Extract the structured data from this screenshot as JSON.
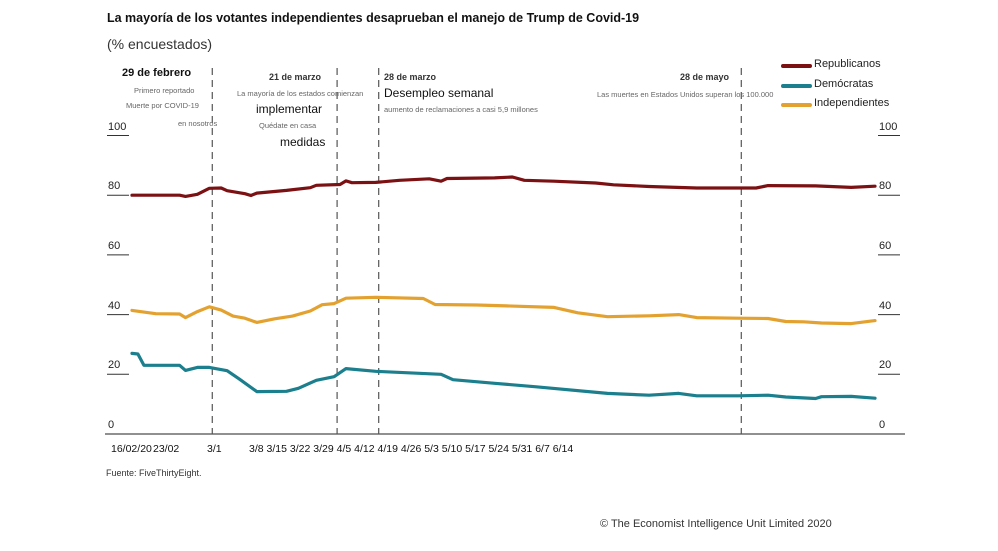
{
  "title": "La mayoría de los votantes independientes desaprueban el manejo de Trump de Covid-19",
  "subtitle": "(% encuestados)",
  "source": "Fuente: FiveThirtyEight.",
  "copyright": "© The Economist Intelligence Unit Limited 2020",
  "annotations": [
    {
      "date": "2020-02-29",
      "label": "29 de febrero",
      "lines": [
        "Primero reportado",
        "Muerte por COVID-19",
        "en nosotros"
      ]
    },
    {
      "date": "2020-03-21",
      "label": "21 de marzo",
      "lines": [
        "La mayoría de los estados comienzan",
        "implementar",
        "Quédate en casa",
        "medidas"
      ]
    },
    {
      "date": "2020-03-28",
      "label": "28 de marzo",
      "lines": [
        "Desempleo semanal",
        "aumento de reclamaciones a casi 5,9 millones"
      ]
    },
    {
      "date": "2020-05-28",
      "label": "28 de mayo",
      "lines": [
        "Las muertes en Estados Unidos superan los 100.000"
      ]
    }
  ],
  "chart_data": {
    "type": "line",
    "title": "La mayoría de los votantes independientes desaprueban el manejo de Trump de Covid-19",
    "subtitle": "(% encuestados)",
    "xlim": [
      "2020-02-16",
      "2020-06-20"
    ],
    "ylim": [
      0,
      100
    ],
    "yticks": [
      "100",
      "80",
      "60",
      "40",
      "20",
      "0"
    ],
    "xtick_labels": [
      "16/02/20",
      "23/02",
      "3/1",
      "3/8",
      "3/15",
      "3/22",
      "3/29",
      "4/5",
      "4/12",
      "4/19",
      "4/26",
      "5/3",
      "5/10",
      "5/17",
      "5/24",
      "5/31",
      "6/7",
      "6/14"
    ],
    "grid": false,
    "legend_position": "top-right",
    "series": [
      {
        "name": "Republicanos",
        "color": "#7b1113",
        "points": [
          [
            "2020-02-16",
            80
          ],
          [
            "2020-02-24",
            80
          ],
          [
            "2020-02-25",
            79.6
          ],
          [
            "2020-02-27",
            80.3
          ],
          [
            "2020-02-29",
            82.3
          ],
          [
            "2020-03-02",
            82.4
          ],
          [
            "2020-03-03",
            81.5
          ],
          [
            "2020-03-06",
            80.5
          ],
          [
            "2020-03-07",
            79.9
          ],
          [
            "2020-03-08",
            80.7
          ],
          [
            "2020-03-13",
            81.6
          ],
          [
            "2020-03-17",
            82.5
          ],
          [
            "2020-03-18",
            83.3
          ],
          [
            "2020-03-22",
            83.6
          ],
          [
            "2020-03-23",
            84.8
          ],
          [
            "2020-03-24",
            84.2
          ],
          [
            "2020-03-28",
            84.3
          ],
          [
            "2020-04-01",
            85
          ],
          [
            "2020-04-06",
            85.5
          ],
          [
            "2020-04-08",
            84.7
          ],
          [
            "2020-04-09",
            85.6
          ],
          [
            "2020-04-17",
            85.8
          ],
          [
            "2020-04-20",
            86.1
          ],
          [
            "2020-04-22",
            85
          ],
          [
            "2020-04-27",
            84.7
          ],
          [
            "2020-05-04",
            84.1
          ],
          [
            "2020-05-07",
            83.5
          ],
          [
            "2020-05-13",
            82.9
          ],
          [
            "2020-05-21",
            82.4
          ],
          [
            "2020-05-31",
            82.4
          ],
          [
            "2020-06-02",
            83.2
          ],
          [
            "2020-06-10",
            83.1
          ],
          [
            "2020-06-16",
            82.6
          ],
          [
            "2020-06-20",
            83
          ]
        ]
      },
      {
        "name": "Demócratas",
        "color": "#1b7f8d",
        "points": [
          [
            "2020-02-16",
            27
          ],
          [
            "2020-02-17",
            26.8
          ],
          [
            "2020-02-18",
            23
          ],
          [
            "2020-02-24",
            23
          ],
          [
            "2020-02-25",
            21.3
          ],
          [
            "2020-02-27",
            22.3
          ],
          [
            "2020-02-29",
            22.3
          ],
          [
            "2020-03-03",
            21.2
          ],
          [
            "2020-03-05",
            18.5
          ],
          [
            "2020-03-08",
            14.2
          ],
          [
            "2020-03-13",
            14.3
          ],
          [
            "2020-03-15",
            15.3
          ],
          [
            "2020-03-18",
            18
          ],
          [
            "2020-03-21",
            19.2
          ],
          [
            "2020-03-23",
            21.9
          ],
          [
            "2020-03-28",
            21
          ],
          [
            "2020-04-08",
            20
          ],
          [
            "2020-04-10",
            18.2
          ],
          [
            "2020-04-17",
            17
          ],
          [
            "2020-04-24",
            15.8
          ],
          [
            "2020-05-06",
            13.6
          ],
          [
            "2020-05-13",
            13
          ],
          [
            "2020-05-18",
            13.6
          ],
          [
            "2020-05-21",
            12.8
          ],
          [
            "2020-05-28",
            12.8
          ],
          [
            "2020-06-02",
            13
          ],
          [
            "2020-06-05",
            12.4
          ],
          [
            "2020-06-10",
            11.9
          ],
          [
            "2020-06-11",
            12.5
          ],
          [
            "2020-06-16",
            12.6
          ],
          [
            "2020-06-20",
            12
          ]
        ]
      },
      {
        "name": "Independientes",
        "color": "#e3a230",
        "points": [
          [
            "2020-02-16",
            41.4
          ],
          [
            "2020-02-20",
            40.3
          ],
          [
            "2020-02-24",
            40.2
          ],
          [
            "2020-02-25",
            39
          ],
          [
            "2020-02-27",
            41
          ],
          [
            "2020-02-29",
            42.6
          ],
          [
            "2020-03-02",
            41.5
          ],
          [
            "2020-03-04",
            39.5
          ],
          [
            "2020-03-06",
            38.8
          ],
          [
            "2020-03-08",
            37.4
          ],
          [
            "2020-03-11",
            38.6
          ],
          [
            "2020-03-14",
            39.5
          ],
          [
            "2020-03-17",
            41.2
          ],
          [
            "2020-03-19",
            43.3
          ],
          [
            "2020-03-21",
            43.7
          ],
          [
            "2020-03-23",
            45.5
          ],
          [
            "2020-03-28",
            45.8
          ],
          [
            "2020-04-05",
            45.4
          ],
          [
            "2020-04-07",
            43.4
          ],
          [
            "2020-04-14",
            43.2
          ],
          [
            "2020-04-19",
            42.9
          ],
          [
            "2020-04-27",
            42.4
          ],
          [
            "2020-05-01",
            40.6
          ],
          [
            "2020-05-06",
            39.3
          ],
          [
            "2020-05-13",
            39.6
          ],
          [
            "2020-05-18",
            40
          ],
          [
            "2020-05-21",
            39
          ],
          [
            "2020-05-28",
            38.8
          ],
          [
            "2020-06-02",
            38.7
          ],
          [
            "2020-06-05",
            37.7
          ],
          [
            "2020-06-08",
            37.6
          ],
          [
            "2020-06-11",
            37.2
          ],
          [
            "2020-06-16",
            37
          ],
          [
            "2020-06-20",
            38
          ]
        ]
      }
    ]
  }
}
